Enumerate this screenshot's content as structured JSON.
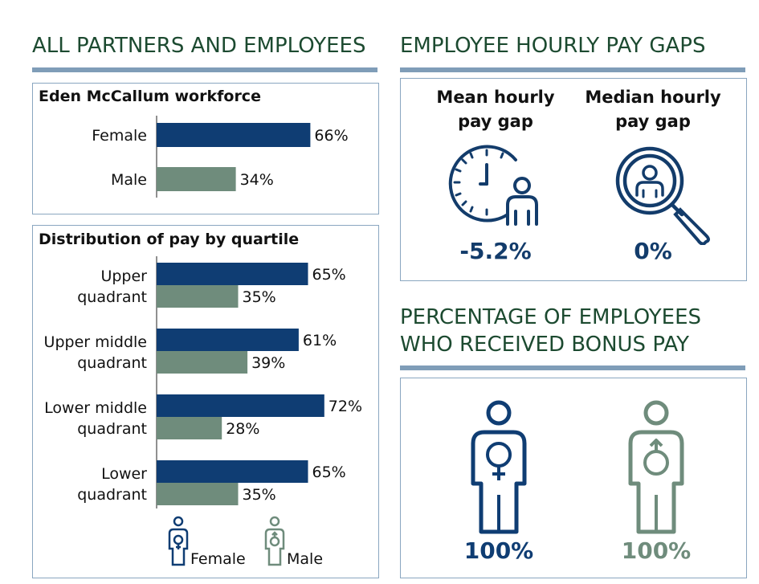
{
  "colors": {
    "female": "#0f3d73",
    "male": "#6f8c7c",
    "heading": "#1c4a30",
    "rule": "#7f9db8",
    "border": "#8aa6c0"
  },
  "left": {
    "heading": "ALL PARTNERS AND EMPLOYEES",
    "workforce_title": "Eden McCallum workforce",
    "quartile_title": "Distribution of pay by quartile",
    "legend": {
      "female": "Female",
      "male": "Male",
      "female_icon": "female-person-icon",
      "male_icon": "male-person-icon"
    }
  },
  "right": {
    "heading": "EMPLOYEE HOURLY PAY GAPS",
    "mean": {
      "title_line1": "Mean hourly",
      "title_line2": "pay gap",
      "value": "-5.2%",
      "icon": "clock-person-icon"
    },
    "median": {
      "title_line1": "Median hourly",
      "title_line2": "pay gap",
      "value": "0%",
      "icon": "magnifier-person-icon"
    },
    "bonus_heading_line1": "PERCENTAGE OF EMPLOYEES",
    "bonus_heading_line2": "WHO RECEIVED BONUS PAY",
    "bonus_female": "100%",
    "bonus_male": "100%"
  },
  "chart_data": [
    {
      "type": "bar",
      "orientation": "horizontal",
      "title": "Eden McCallum workforce",
      "categories": [
        "Female",
        "Male"
      ],
      "values": [
        66,
        34
      ],
      "value_labels": [
        "66%",
        "34%"
      ],
      "unit": "%",
      "colors": [
        "#0f3d73",
        "#6f8c7c"
      ]
    },
    {
      "type": "bar",
      "orientation": "horizontal",
      "title": "Distribution of pay by quartile",
      "categories": [
        [
          "Upper",
          "quadrant"
        ],
        [
          "Upper middle",
          "quadrant"
        ],
        [
          "Lower middle",
          "quadrant"
        ],
        [
          "Lower",
          "quadrant"
        ]
      ],
      "series": [
        {
          "name": "Female",
          "values": [
            65,
            61,
            72,
            65
          ],
          "labels": [
            "65%",
            "61%",
            "72%",
            "65%"
          ]
        },
        {
          "name": "Male",
          "values": [
            35,
            39,
            28,
            35
          ],
          "labels": [
            "35%",
            "39%",
            "28%",
            "35%"
          ]
        }
      ],
      "unit": "%"
    }
  ]
}
